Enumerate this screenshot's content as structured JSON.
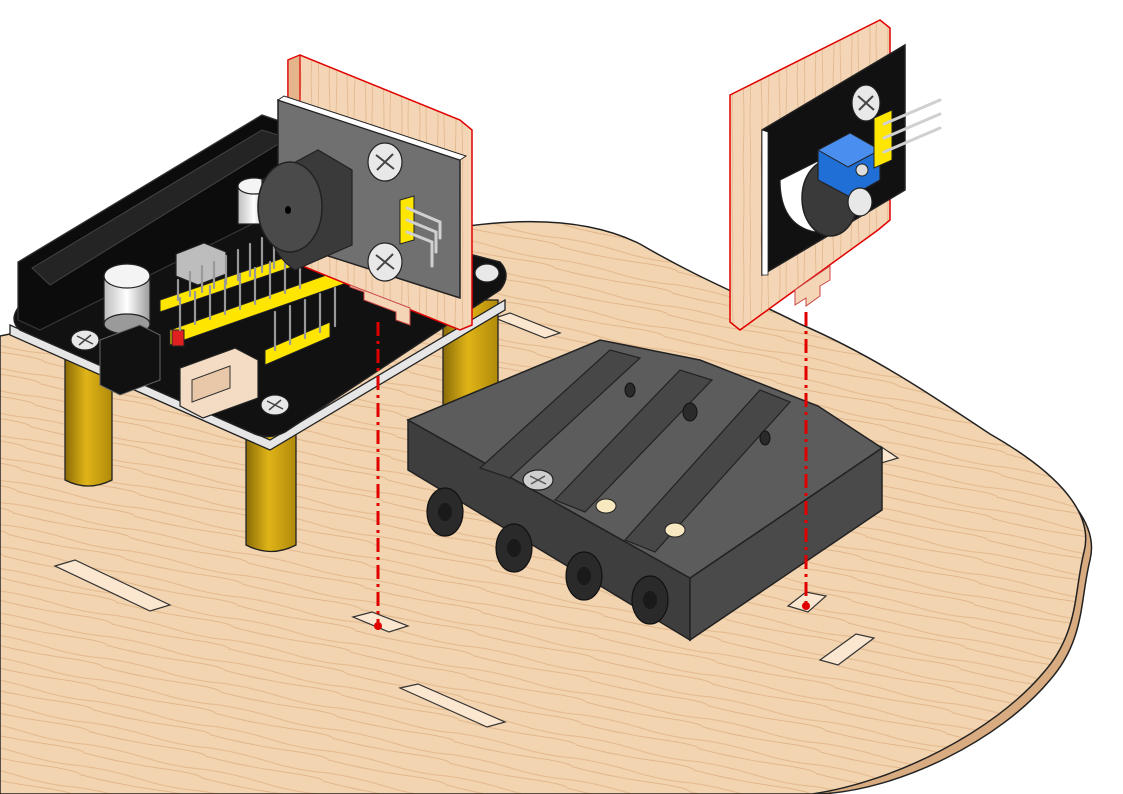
{
  "scene": {
    "colors": {
      "background": "#ffffff",
      "wood": "#f3d4b0",
      "wood_dark": "#d9ab80",
      "wood_grain": "#c8935f",
      "outline": "#222222",
      "pcb": "#111111",
      "pcb_face": "#2a2a2a",
      "header_yellow": "#ffe600",
      "pin_silver": "#cfcfcf",
      "standoff": "#c9a011",
      "standoff_shade": "#8a6c06",
      "battery_holder": "#4a4a4a",
      "battery_holder_top": "#5c5c5c",
      "module_grey": "#707070",
      "guide_red": "#e00000",
      "pot_blue": "#1f6fd6",
      "connector_cream": "#f4dcc4"
    },
    "parts": [
      {
        "name": "wooden-base-plate",
        "icon": "wood-plate-icon"
      },
      {
        "name": "driver-shield-board",
        "icon": "pcb-icon"
      },
      {
        "name": "brass-standoff",
        "icon": "standoff-icon"
      },
      {
        "name": "buzzer-module",
        "icon": "buzzer-icon"
      },
      {
        "name": "sound-sensor-module",
        "icon": "microphone-icon"
      },
      {
        "name": "battery-holder",
        "icon": "battery-holder-icon"
      },
      {
        "name": "mounting-bracket",
        "icon": "bracket-icon"
      },
      {
        "name": "alignment-guide",
        "icon": "dash-dot-line-icon"
      }
    ]
  }
}
